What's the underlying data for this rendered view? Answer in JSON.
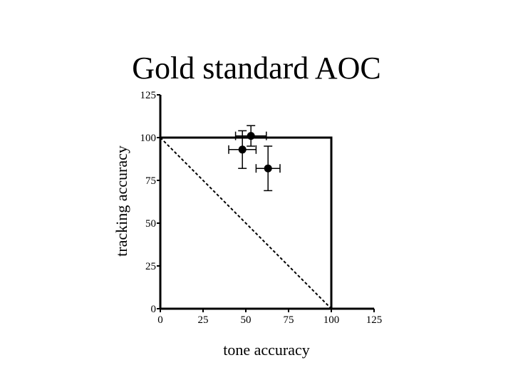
{
  "slide": {
    "title": "Gold standard AOC"
  },
  "colors": {
    "ink": "#000000",
    "background": "#ffffff"
  },
  "chart_data": {
    "type": "scatter",
    "title": "Gold standard AOC",
    "xlabel": "tone accuracy",
    "ylabel": "tracking accuracy",
    "xlim": [
      0,
      125
    ],
    "ylim": [
      0,
      125
    ],
    "xticks": [
      0,
      25,
      50,
      75,
      100,
      125
    ],
    "yticks": [
      0,
      25,
      50,
      75,
      100,
      125
    ],
    "grid": false,
    "points": [
      {
        "x": 53,
        "y": 101,
        "xerr": 9,
        "yerr": 6
      },
      {
        "x": 48,
        "y": 93,
        "xerr": 8,
        "yerr": 11
      },
      {
        "x": 63,
        "y": 82,
        "xerr": 7,
        "yerr": 13
      }
    ],
    "reference_lines": [
      {
        "style": "solid",
        "x": [
          0,
          100,
          100
        ],
        "y": [
          100,
          100,
          0
        ]
      },
      {
        "style": "dashed",
        "x": [
          0,
          100
        ],
        "y": [
          100,
          0
        ]
      }
    ]
  }
}
